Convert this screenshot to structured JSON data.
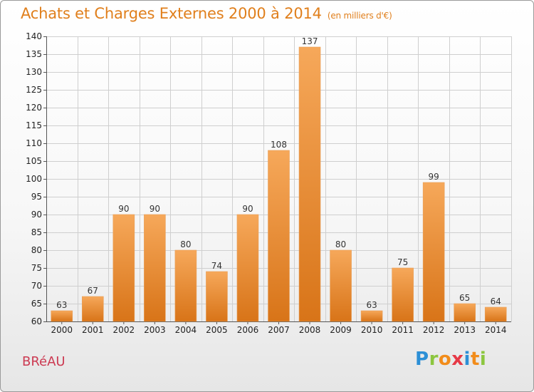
{
  "header": {
    "title": "Achats et Charges Externes 2000 à 2014",
    "unit": "(en milliers d'€)"
  },
  "footer": {
    "commune": "BRéAU",
    "logo_letters": [
      "P",
      "r",
      "o",
      "x",
      "i",
      "t",
      "i"
    ],
    "logo_colors": [
      "#2c8fd6",
      "#8cc63f",
      "#f28c1a",
      "#e63946",
      "#2c8fd6",
      "#f28c1a",
      "#8cc63f"
    ]
  },
  "colors": {
    "title": "#e07f1c",
    "commune": "#cc3a52",
    "bar_light": "#f6a85a",
    "bar_dark": "#d87418",
    "grid": "#cfcfcf"
  },
  "chart_data": {
    "type": "bar",
    "categories": [
      "2000",
      "2001",
      "2002",
      "2003",
      "2004",
      "2005",
      "2006",
      "2007",
      "2008",
      "2009",
      "2010",
      "2011",
      "2012",
      "2013",
      "2014"
    ],
    "values": [
      63,
      67,
      90,
      90,
      80,
      74,
      90,
      108,
      137,
      80,
      63,
      75,
      99,
      65,
      64
    ],
    "ylim": [
      60,
      140
    ],
    "yticks": [
      60,
      65,
      70,
      75,
      80,
      85,
      90,
      95,
      100,
      105,
      110,
      115,
      120,
      125,
      130,
      135,
      140
    ],
    "grid": true,
    "data_labels": true
  }
}
